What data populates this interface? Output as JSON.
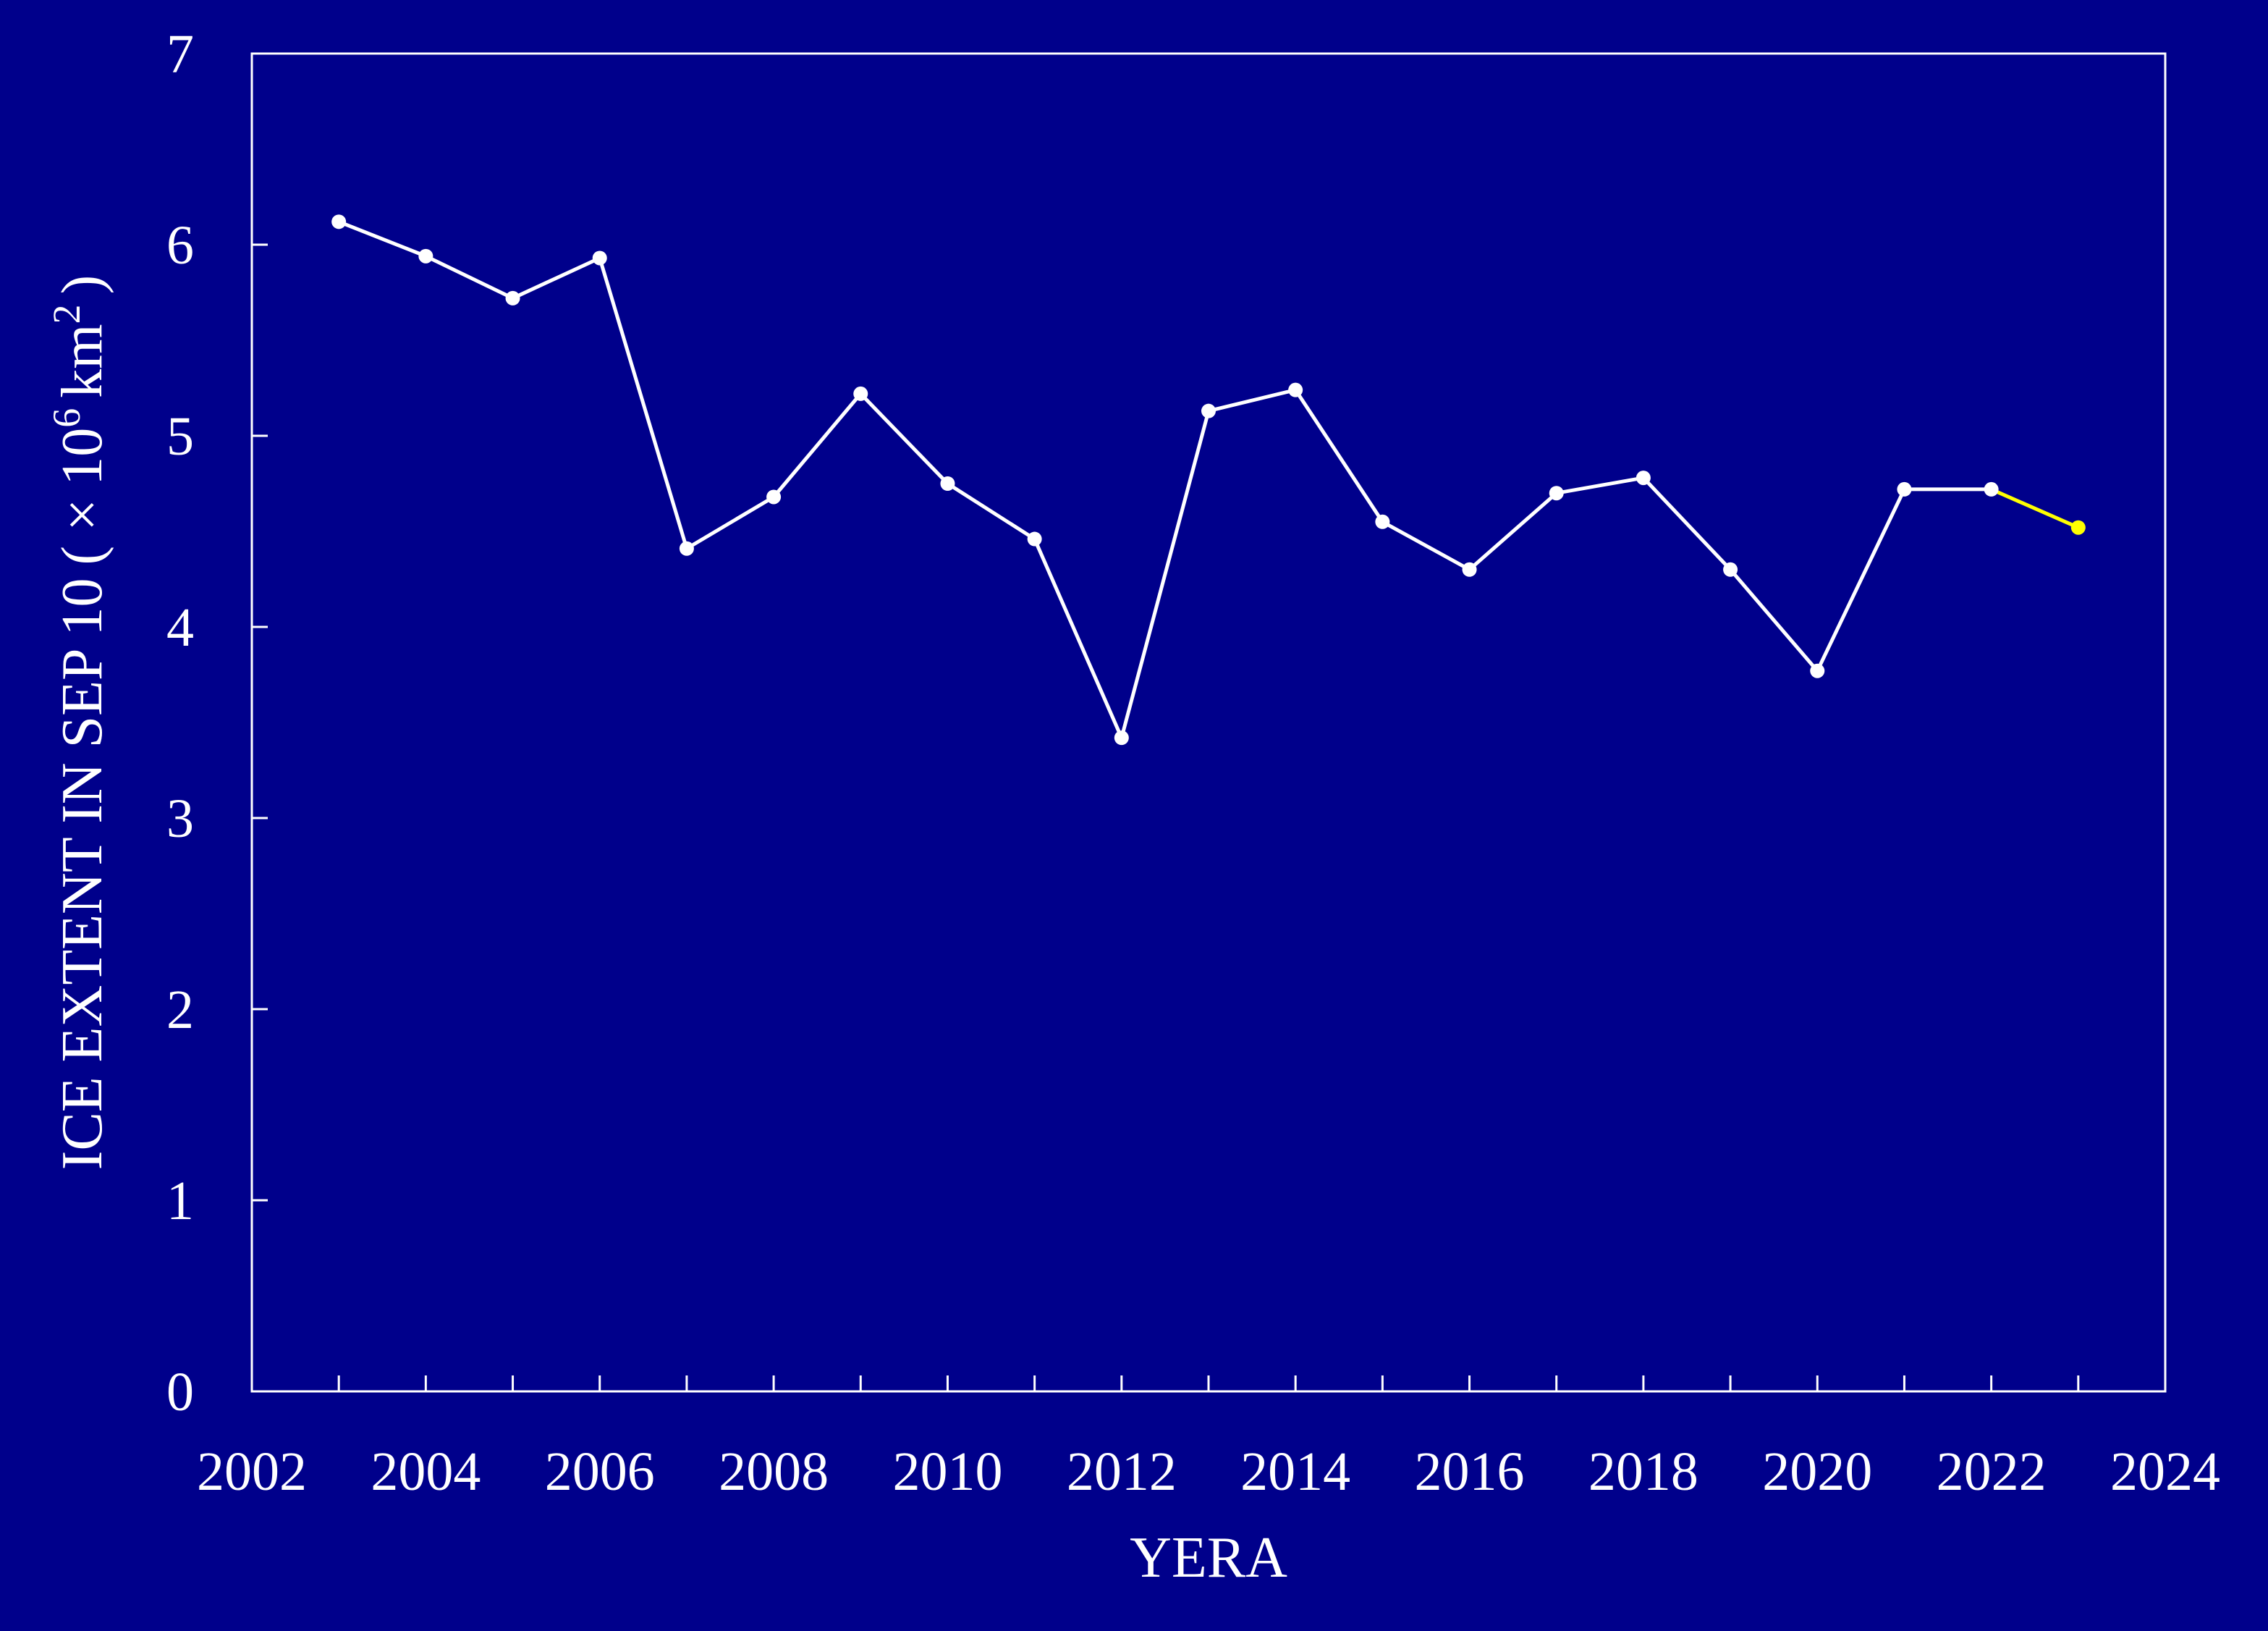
{
  "chart_data": {
    "type": "line",
    "xlabel": "YERA",
    "ylabel": "ICE EXTENT IN SEP 10",
    "ylabel_unit": {
      "open": "( ×",
      "base": "10",
      "base_exp": "6",
      "unit": "km",
      "unit_exp": "2",
      "close": ")"
    },
    "xlim": [
      2002,
      2024
    ],
    "ylim": [
      0,
      7
    ],
    "x_ticks": [
      "2002",
      "2004",
      "2006",
      "2008",
      "2010",
      "2012",
      "2014",
      "2016",
      "2018",
      "2020",
      "2022",
      "2024"
    ],
    "y_ticks": [
      "0",
      "1",
      "2",
      "3",
      "4",
      "5",
      "6",
      "7"
    ],
    "grid": false,
    "series": [
      {
        "color": "#ffffff",
        "x": [
          2003,
          2004,
          2005,
          2006,
          2007,
          2008,
          2009,
          2010,
          2011,
          2012,
          2013,
          2014,
          2015,
          2016,
          2017,
          2018,
          2019,
          2020,
          2021,
          2022
        ],
        "y": [
          6.12,
          5.94,
          5.72,
          5.93,
          4.41,
          4.68,
          5.22,
          4.75,
          4.46,
          3.42,
          5.13,
          5.24,
          4.55,
          4.3,
          4.7,
          4.78,
          4.3,
          3.77,
          4.72,
          4.72
        ]
      },
      {
        "color": "#ffff00",
        "x": [
          2022,
          2023
        ],
        "y": [
          4.72,
          4.52
        ]
      }
    ]
  }
}
